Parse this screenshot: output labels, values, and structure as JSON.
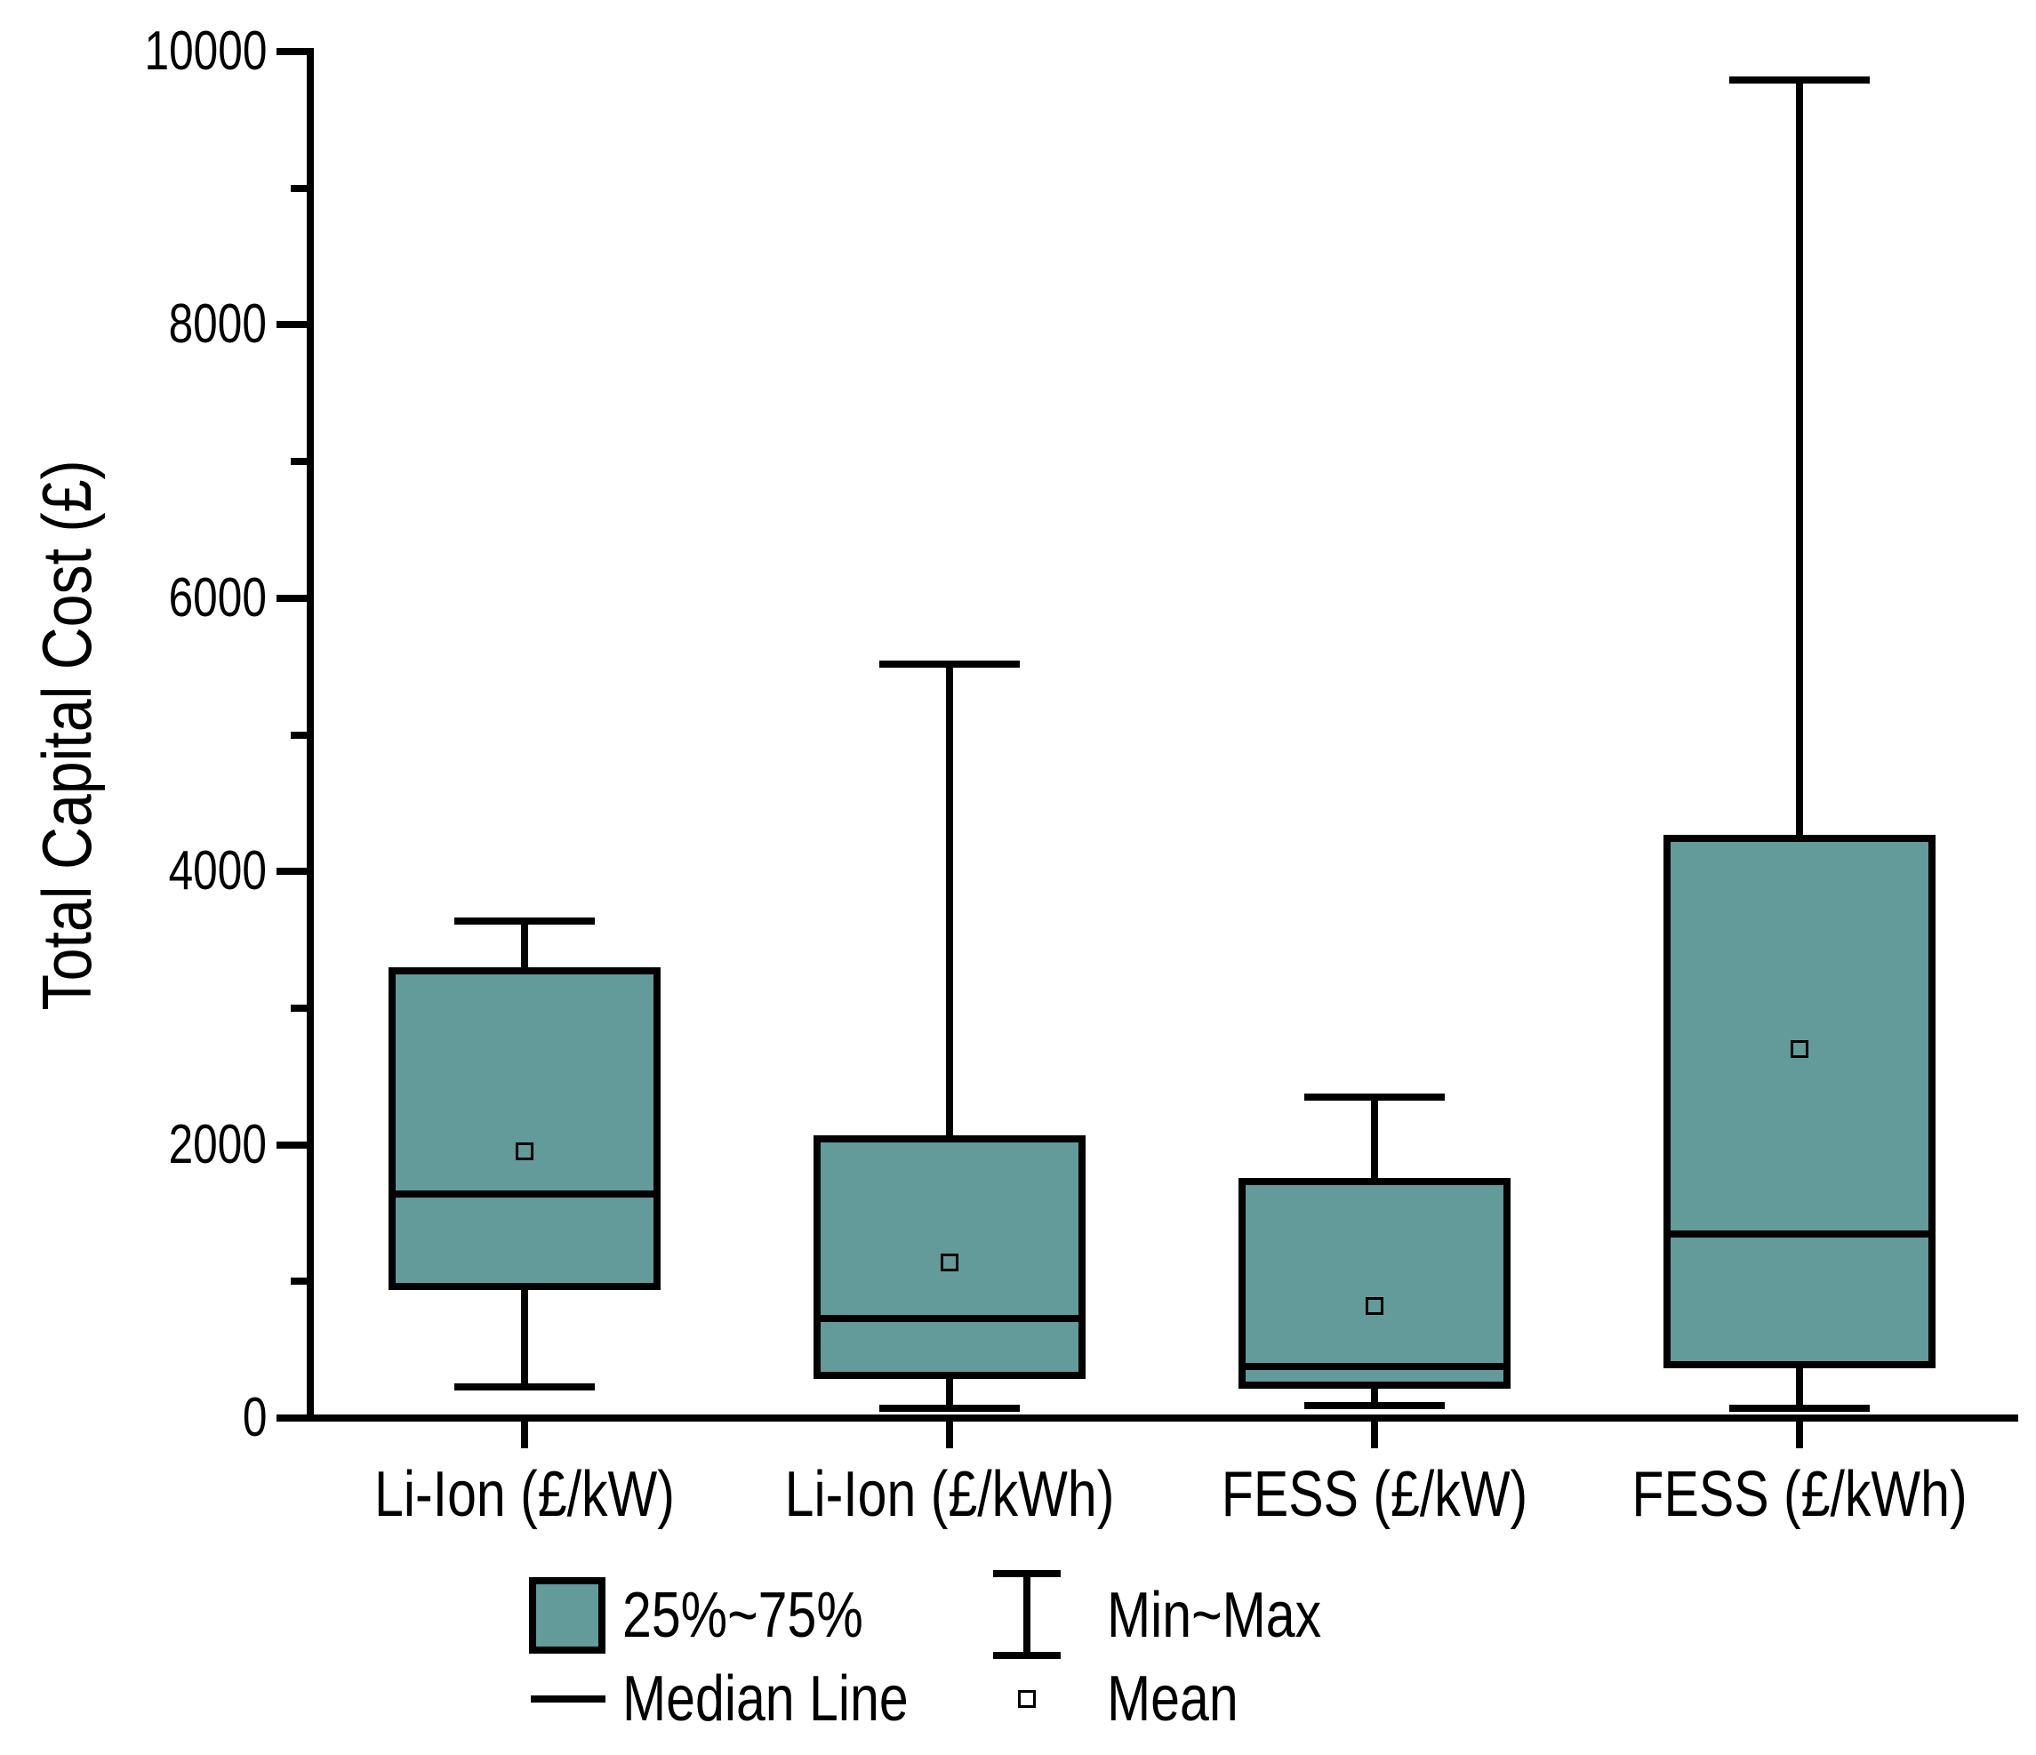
{
  "y_axis": {
    "label": "Total Capital Cost (£)",
    "min": 0,
    "max": 10000
  },
  "legend": {
    "box_label": "25%~75%",
    "minmax_label": "Min~Max",
    "median_label": "Median Line",
    "mean_label": "Mean"
  },
  "colors": {
    "box_fill": "#629b9a",
    "stroke": "#000000",
    "background": "#ffffff"
  },
  "chart_data": {
    "type": "box",
    "title": "",
    "xlabel": "",
    "ylabel": "Total Capital Cost (£)",
    "ylim": [
      0,
      10000
    ],
    "yticks_major": [
      0,
      2000,
      4000,
      6000,
      8000,
      10000
    ],
    "yticks_minor": [
      1000,
      3000,
      5000,
      7000,
      9000
    ],
    "grid": "off",
    "legend_position": "bottom",
    "categories": [
      "Li-Ion (£/kW)",
      "Li-Ion (£/kWh)",
      "FESS (£/kW)",
      "FESS (£/kWh)"
    ],
    "series": [
      {
        "name": "Li-Ion (£/kW)",
        "min": 230,
        "q1": 960,
        "median": 1640,
        "mean": 1950,
        "q3": 3270,
        "max": 3640
      },
      {
        "name": "Li-Ion (£/kWh)",
        "min": 70,
        "q1": 310,
        "median": 730,
        "mean": 1140,
        "q3": 2040,
        "max": 5520
      },
      {
        "name": "FESS (£/kW)",
        "min": 90,
        "q1": 240,
        "median": 380,
        "mean": 820,
        "q3": 1730,
        "max": 2350
      },
      {
        "name": "FESS (£/kWh)",
        "min": 70,
        "q1": 390,
        "median": 1350,
        "mean": 2700,
        "q3": 4240,
        "max": 9790
      }
    ]
  }
}
